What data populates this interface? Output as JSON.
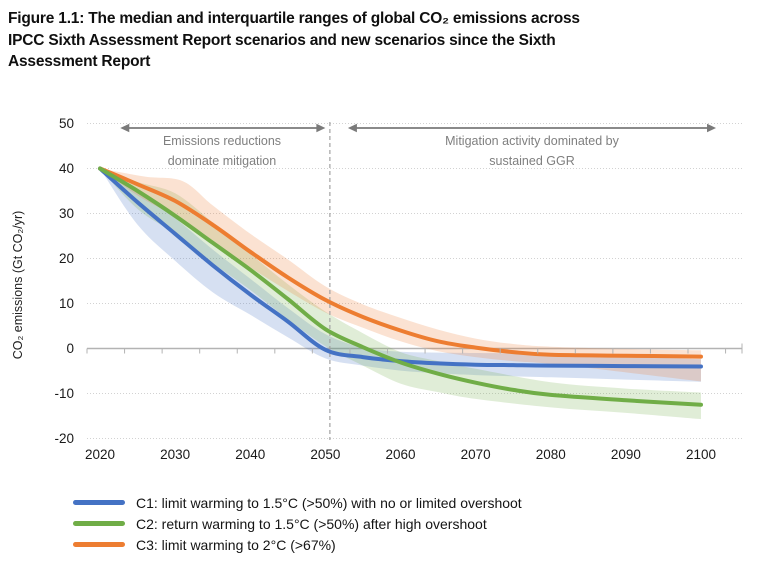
{
  "title": {
    "lines": [
      "Figure 1.1: The median and interquartile ranges of global CO₂ emissions across",
      "IPCC Sixth Assessment Report scenarios and new scenarios since the Sixth",
      "Assessment Report"
    ]
  },
  "chart_data": {
    "type": "line",
    "title": "",
    "xlabel": "",
    "ylabel": "CO₂ emissions (Gt CO₂/yr)",
    "x_ticks": [
      2020,
      2030,
      2040,
      2050,
      2060,
      2070,
      2080,
      2090,
      2100
    ],
    "y_ticks": [
      50,
      40,
      30,
      20,
      10,
      0,
      -10,
      -20
    ],
    "xlim": [
      2018.3,
      2105.5
    ],
    "ylim": [
      -20,
      50
    ],
    "grid": true,
    "divider_year": 2050.6,
    "annotations": [
      {
        "lines": [
          "Emissions reductions",
          "dominate mitigation"
        ],
        "arrow_span_years": [
          2022.7,
          2050.0
        ],
        "color": "#7f7f7f"
      },
      {
        "lines": [
          "Mitigation activity dominated by",
          "sustained GGR"
        ],
        "arrow_span_years": [
          2053.0,
          2102.0
        ],
        "color": "#7f7f7f"
      }
    ],
    "legend_position": "bottom-left",
    "series": [
      {
        "name": "C1",
        "label": "C1: limit warming to 1.5°C (>50%) with no or limited overshoot",
        "color": "#4472C4",
        "band_color": "rgba(68,114,196,0.22)",
        "median": [
          [
            2020,
            40
          ],
          [
            2025,
            32.5
          ],
          [
            2030,
            25.5
          ],
          [
            2035,
            18.5
          ],
          [
            2040,
            12
          ],
          [
            2045,
            6
          ],
          [
            2050,
            -0.3
          ],
          [
            2055,
            -1.9
          ],
          [
            2060,
            -2.8
          ],
          [
            2065,
            -3.3
          ],
          [
            2070,
            -3.6
          ],
          [
            2075,
            -3.7
          ],
          [
            2080,
            -3.8
          ],
          [
            2090,
            -3.9
          ],
          [
            2100,
            -4
          ]
        ],
        "band_upper": [
          [
            2020,
            40
          ],
          [
            2025,
            35.5
          ],
          [
            2030,
            29
          ],
          [
            2035,
            22
          ],
          [
            2040,
            15.5
          ],
          [
            2045,
            9
          ],
          [
            2050,
            3.2
          ],
          [
            2055,
            0.2
          ],
          [
            2060,
            -0.7
          ],
          [
            2065,
            -0.9
          ],
          [
            2070,
            -1
          ],
          [
            2080,
            -1.2
          ],
          [
            2090,
            -1.8
          ],
          [
            2100,
            -2.4
          ]
        ],
        "band_lower": [
          [
            2020,
            40
          ],
          [
            2025,
            27.5
          ],
          [
            2030,
            19.5
          ],
          [
            2035,
            12.5
          ],
          [
            2040,
            7.5
          ],
          [
            2045,
            2.5
          ],
          [
            2050,
            -2.2
          ],
          [
            2055,
            -3.8
          ],
          [
            2060,
            -4.9
          ],
          [
            2065,
            -5.5
          ],
          [
            2070,
            -5.9
          ],
          [
            2080,
            -6.4
          ],
          [
            2090,
            -6.9
          ],
          [
            2100,
            -7.4
          ]
        ]
      },
      {
        "name": "C2",
        "label": "C2: return warming to 1.5°C (>50%) after high overshoot",
        "color": "#70AD47",
        "band_color": "rgba(112,173,71,0.22)",
        "median": [
          [
            2020,
            40
          ],
          [
            2025,
            35
          ],
          [
            2030,
            29.5
          ],
          [
            2035,
            23.5
          ],
          [
            2040,
            17.5
          ],
          [
            2045,
            11
          ],
          [
            2050,
            4.3
          ],
          [
            2055,
            0.3
          ],
          [
            2060,
            -3.1
          ],
          [
            2065,
            -5.6
          ],
          [
            2070,
            -7.6
          ],
          [
            2075,
            -9.2
          ],
          [
            2080,
            -10.3
          ],
          [
            2090,
            -11.5
          ],
          [
            2100,
            -12.5
          ]
        ],
        "band_upper": [
          [
            2020,
            40
          ],
          [
            2025,
            37
          ],
          [
            2030,
            34.5
          ],
          [
            2035,
            28
          ],
          [
            2040,
            21
          ],
          [
            2045,
            14.3
          ],
          [
            2050,
            8.2
          ],
          [
            2055,
            3.4
          ],
          [
            2060,
            -0.8
          ],
          [
            2065,
            -2.8
          ],
          [
            2070,
            -4.5
          ],
          [
            2080,
            -7.5
          ],
          [
            2090,
            -8.9
          ],
          [
            2100,
            -9.8
          ]
        ],
        "band_lower": [
          [
            2020,
            40
          ],
          [
            2025,
            31
          ],
          [
            2030,
            25.5
          ],
          [
            2035,
            19
          ],
          [
            2040,
            13
          ],
          [
            2045,
            6.5
          ],
          [
            2050,
            0.5
          ],
          [
            2055,
            -3.8
          ],
          [
            2060,
            -7.8
          ],
          [
            2065,
            -9.7
          ],
          [
            2070,
            -11.2
          ],
          [
            2080,
            -13.1
          ],
          [
            2090,
            -14.3
          ],
          [
            2100,
            -15.7
          ]
        ]
      },
      {
        "name": "C3",
        "label": "C3: limit warming to 2°C (>67%)",
        "color": "#ED7D31",
        "band_color": "rgba(237,125,49,0.22)",
        "median": [
          [
            2020,
            40
          ],
          [
            2025,
            36.5
          ],
          [
            2030,
            32.8
          ],
          [
            2035,
            27.5
          ],
          [
            2040,
            21.5
          ],
          [
            2045,
            15.8
          ],
          [
            2050,
            10.8
          ],
          [
            2055,
            7
          ],
          [
            2060,
            4
          ],
          [
            2065,
            1.6
          ],
          [
            2070,
            0.2
          ],
          [
            2075,
            -0.8
          ],
          [
            2080,
            -1.4
          ],
          [
            2090,
            -1.6
          ],
          [
            2100,
            -1.8
          ]
        ],
        "band_upper": [
          [
            2020,
            40
          ],
          [
            2026,
            38.2
          ],
          [
            2031,
            37.2
          ],
          [
            2035,
            31.8
          ],
          [
            2040,
            25.5
          ],
          [
            2045,
            19.8
          ],
          [
            2050,
            13.8
          ],
          [
            2055,
            9.8
          ],
          [
            2060,
            6.8
          ],
          [
            2065,
            4.2
          ],
          [
            2070,
            2.2
          ],
          [
            2075,
            1
          ],
          [
            2080,
            0.4
          ],
          [
            2090,
            -0.1
          ],
          [
            2100,
            -0.4
          ]
        ],
        "band_lower": [
          [
            2020,
            40
          ],
          [
            2025,
            34
          ],
          [
            2030,
            29.3
          ],
          [
            2035,
            23.5
          ],
          [
            2040,
            18
          ],
          [
            2045,
            12.8
          ],
          [
            2050,
            8
          ],
          [
            2055,
            4.6
          ],
          [
            2060,
            1.6
          ],
          [
            2065,
            -0.6
          ],
          [
            2070,
            -1.9
          ],
          [
            2075,
            -2.8
          ],
          [
            2080,
            -3.4
          ],
          [
            2090,
            -5.3
          ],
          [
            2100,
            -7.3
          ]
        ]
      }
    ]
  }
}
